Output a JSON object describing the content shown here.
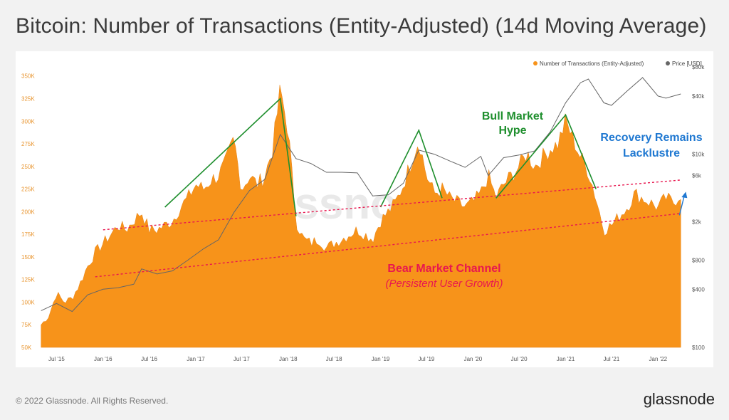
{
  "title": "Bitcoin: Number of Transactions (Entity-Adjusted) (14d Moving Average)",
  "footer": {
    "copyright": "© 2022 Glassnode. All Rights Reserved.",
    "brand": "glassnode"
  },
  "colors": {
    "series": "#f7931a",
    "price": "#666666",
    "bull": "#1f8f2e",
    "bear": "#e8174f",
    "recovery": "#1f78d1"
  },
  "chart_data": {
    "type": "area",
    "title": "Bitcoin: Number of Transactions (Entity-Adjusted) (14d Moving Average)",
    "x_ticks": [
      "Jul '15",
      "Jan '16",
      "Jul '16",
      "Jan '17",
      "Jul '17",
      "Jan '18",
      "Jul '18",
      "Jan '19",
      "Jul '19",
      "Jan '20",
      "Jul '20",
      "Jan '21",
      "Jul '21",
      "Jan '22"
    ],
    "y_left": {
      "ticks": [
        "50K",
        "75K",
        "100K",
        "125K",
        "150K",
        "175K",
        "200K",
        "225K",
        "250K",
        "275K",
        "300K",
        "325K",
        "350K"
      ],
      "range": [
        50000,
        360000
      ]
    },
    "y_right": {
      "ticks": [
        "$100",
        "$400",
        "$800",
        "$2k",
        "$6k",
        "$10k",
        "$40k",
        "$80k"
      ],
      "scale": "log",
      "range": [
        100,
        80000
      ]
    },
    "legend": {
      "position": "top-right",
      "items": [
        "Number of Transactions (Entity-Adjusted)",
        "Price [USD]"
      ]
    },
    "series": [
      {
        "name": "Number of Transactions (Entity-Adjusted)",
        "axis": "left",
        "points": [
          [
            "2015-05",
            75000
          ],
          [
            "2015-06",
            85000
          ],
          [
            "2015-07",
            110000
          ],
          [
            "2015-08",
            100000
          ],
          [
            "2015-09",
            105000
          ],
          [
            "2015-10",
            120000
          ],
          [
            "2015-11",
            140000
          ],
          [
            "2015-12",
            155000
          ],
          [
            "2016-01",
            165000
          ],
          [
            "2016-02",
            175000
          ],
          [
            "2016-03",
            185000
          ],
          [
            "2016-04",
            180000
          ],
          [
            "2016-05",
            190000
          ],
          [
            "2016-06",
            200000
          ],
          [
            "2016-07",
            180000
          ],
          [
            "2016-08",
            180000
          ],
          [
            "2016-09",
            185000
          ],
          [
            "2016-10",
            190000
          ],
          [
            "2016-11",
            205000
          ],
          [
            "2016-12",
            215000
          ],
          [
            "2017-01",
            230000
          ],
          [
            "2017-02",
            225000
          ],
          [
            "2017-03",
            235000
          ],
          [
            "2017-04",
            240000
          ],
          [
            "2017-05",
            255000
          ],
          [
            "2017-06",
            280000
          ],
          [
            "2017-07",
            225000
          ],
          [
            "2017-08",
            240000
          ],
          [
            "2017-09",
            230000
          ],
          [
            "2017-10",
            240000
          ],
          [
            "2017-11",
            270000
          ],
          [
            "2017-12",
            335000
          ],
          [
            "2018-01",
            290000
          ],
          [
            "2018-02",
            190000
          ],
          [
            "2018-03",
            170000
          ],
          [
            "2018-04",
            165000
          ],
          [
            "2018-05",
            170000
          ],
          [
            "2018-06",
            160000
          ],
          [
            "2018-07",
            165000
          ],
          [
            "2018-08",
            170000
          ],
          [
            "2018-09",
            175000
          ],
          [
            "2018-10",
            180000
          ],
          [
            "2018-11",
            175000
          ],
          [
            "2018-12",
            170000
          ],
          [
            "2019-01",
            190000
          ],
          [
            "2019-02",
            200000
          ],
          [
            "2019-03",
            210000
          ],
          [
            "2019-04",
            230000
          ],
          [
            "2019-05",
            255000
          ],
          [
            "2019-06",
            280000
          ],
          [
            "2019-07",
            240000
          ],
          [
            "2019-08",
            220000
          ],
          [
            "2019-09",
            225000
          ],
          [
            "2019-10",
            215000
          ],
          [
            "2019-11",
            210000
          ],
          [
            "2019-12",
            205000
          ],
          [
            "2020-01",
            210000
          ],
          [
            "2020-02",
            220000
          ],
          [
            "2020-03",
            240000
          ],
          [
            "2020-04",
            215000
          ],
          [
            "2020-05",
            230000
          ],
          [
            "2020-06",
            240000
          ],
          [
            "2020-07",
            250000
          ],
          [
            "2020-08",
            265000
          ],
          [
            "2020-09",
            250000
          ],
          [
            "2020-10",
            260000
          ],
          [
            "2020-11",
            270000
          ],
          [
            "2020-12",
            275000
          ],
          [
            "2021-01",
            300000
          ],
          [
            "2021-02",
            280000
          ],
          [
            "2021-03",
            260000
          ],
          [
            "2021-04",
            245000
          ],
          [
            "2021-05",
            215000
          ],
          [
            "2021-06",
            180000
          ],
          [
            "2021-07",
            185000
          ],
          [
            "2021-08",
            195000
          ],
          [
            "2021-09",
            205000
          ],
          [
            "2021-10",
            220000
          ],
          [
            "2021-11",
            215000
          ],
          [
            "2021-12",
            210000
          ],
          [
            "2022-01",
            205000
          ],
          [
            "2022-02",
            215000
          ],
          [
            "2022-03",
            210000
          ],
          [
            "2022-04",
            220000
          ]
        ]
      },
      {
        "name": "Price [USD]",
        "axis": "right",
        "points": [
          [
            "2015-05",
            240
          ],
          [
            "2015-07",
            285
          ],
          [
            "2015-09",
            235
          ],
          [
            "2015-11",
            350
          ],
          [
            "2016-01",
            400
          ],
          [
            "2016-03",
            415
          ],
          [
            "2016-05",
            450
          ],
          [
            "2016-06",
            650
          ],
          [
            "2016-08",
            575
          ],
          [
            "2016-10",
            620
          ],
          [
            "2016-12",
            800
          ],
          [
            "2017-02",
            1050
          ],
          [
            "2017-04",
            1300
          ],
          [
            "2017-06",
            2500
          ],
          [
            "2017-08",
            4200
          ],
          [
            "2017-10",
            5500
          ],
          [
            "2017-12",
            16000
          ],
          [
            "2018-02",
            9000
          ],
          [
            "2018-04",
            8000
          ],
          [
            "2018-06",
            6500
          ],
          [
            "2018-08",
            6500
          ],
          [
            "2018-10",
            6400
          ],
          [
            "2018-12",
            3700
          ],
          [
            "2019-02",
            3800
          ],
          [
            "2019-04",
            5000
          ],
          [
            "2019-06",
            11000
          ],
          [
            "2019-08",
            10000
          ],
          [
            "2019-10",
            8500
          ],
          [
            "2019-12",
            7300
          ],
          [
            "2020-02",
            9500
          ],
          [
            "2020-03",
            6000
          ],
          [
            "2020-05",
            9200
          ],
          [
            "2020-07",
            9800
          ],
          [
            "2020-09",
            10800
          ],
          [
            "2020-11",
            17000
          ],
          [
            "2021-01",
            34000
          ],
          [
            "2021-03",
            55000
          ],
          [
            "2021-04",
            60000
          ],
          [
            "2021-06",
            34000
          ],
          [
            "2021-07",
            32000
          ],
          [
            "2021-09",
            45000
          ],
          [
            "2021-11",
            62000
          ],
          [
            "2022-01",
            40000
          ],
          [
            "2022-02",
            38000
          ],
          [
            "2022-04",
            42000
          ]
        ]
      }
    ],
    "annotations": {
      "bull": "Bull Market\nHype",
      "bear_title": "Bear Market Channel",
      "bear_sub": "(Persistent User Growth)",
      "recovery": "Recovery Remains\nLacklustre"
    }
  }
}
